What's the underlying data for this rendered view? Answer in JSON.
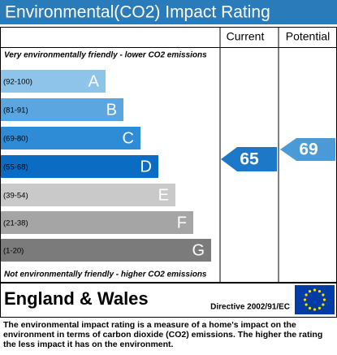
{
  "title": "Environmental(CO2) Impact Rating",
  "columns": {
    "current": "Current",
    "potential": "Potential"
  },
  "top_note": "Very environmentally friendly - lower CO2 emissions",
  "bottom_note": "Not environmentally friendly - higher CO2 emissions",
  "bands": [
    {
      "range": "(92-100)",
      "letter": "A",
      "color": "#8fc4ea"
    },
    {
      "range": "(81-91)",
      "letter": "B",
      "color": "#5ba6e0"
    },
    {
      "range": "(69-80)",
      "letter": "C",
      "color": "#2e8bd6"
    },
    {
      "range": "(55-68)",
      "letter": "D",
      "color": "#0b6cc4"
    },
    {
      "range": "(39-54)",
      "letter": "E",
      "color": "#c9c9c9"
    },
    {
      "range": "(21-38)",
      "letter": "F",
      "color": "#a5a5a5"
    },
    {
      "range": "(1-20)",
      "letter": "G",
      "color": "#7b7b7b"
    }
  ],
  "current": 65,
  "potential": 69,
  "region": "England & Wales",
  "directive": "Directive 2002/91/EC",
  "footer": "The environmental impact rating is a measure of a home's impact on the environment in terms of carbon dioxide (CO2) emissions. The higher the rating the less impact it has on the environment."
}
